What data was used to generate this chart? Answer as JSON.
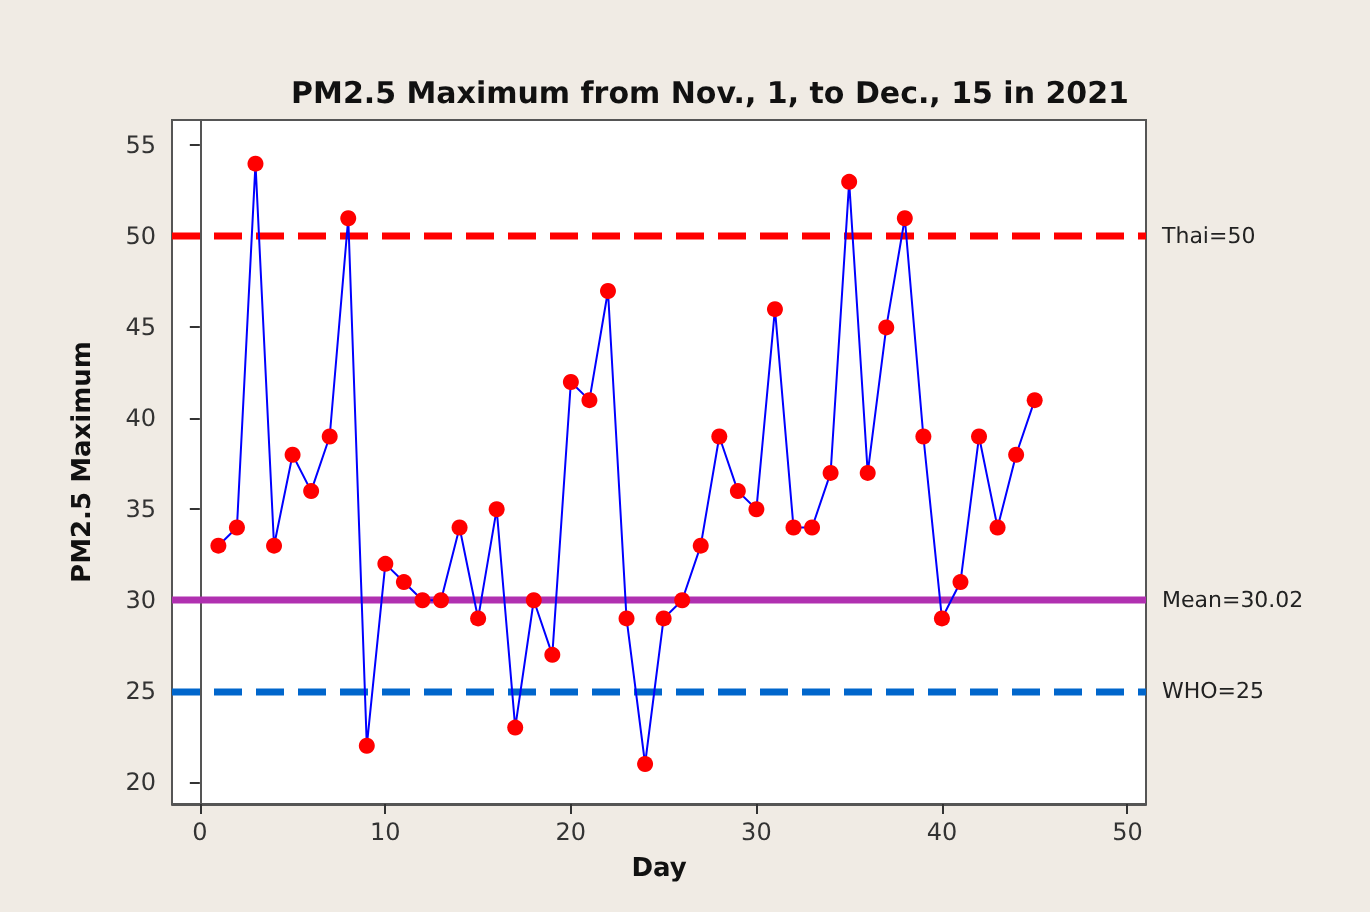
{
  "chart_data": {
    "type": "line",
    "title": "PM2.5 Maximum from Nov., 1, to Dec., 15 in 2021",
    "xlabel": "Day",
    "ylabel": "PM2.5 Maximum",
    "x": [
      1,
      2,
      3,
      4,
      5,
      6,
      7,
      8,
      9,
      10,
      11,
      12,
      13,
      14,
      15,
      16,
      17,
      18,
      19,
      20,
      21,
      22,
      23,
      24,
      25,
      26,
      27,
      28,
      29,
      30,
      31,
      32,
      33,
      34,
      35,
      36,
      37,
      38,
      39,
      40,
      41,
      42,
      43,
      44,
      45
    ],
    "series": [
      {
        "color": "#0000ff",
        "values": [
          33,
          34,
          54,
          33,
          38,
          36,
          39,
          51,
          22,
          32,
          31,
          30,
          30,
          34,
          29,
          35,
          23,
          30,
          27,
          42,
          41,
          47,
          29,
          21,
          29,
          30,
          33,
          39,
          36,
          35,
          46,
          34,
          34,
          37,
          53,
          37,
          45,
          51,
          39,
          29,
          31,
          39,
          34,
          38,
          41
        ]
      }
    ],
    "marker": "circle",
    "line_style": "solid",
    "grid": false,
    "xlim": [
      -1.5,
      51
    ],
    "xticks": [
      0,
      10,
      20,
      30,
      40,
      50
    ],
    "ylim": [
      18.8,
      56.4
    ],
    "yticks": [
      20,
      25,
      30,
      35,
      40,
      45,
      50,
      55
    ],
    "ref_lines": [
      {
        "axis": "y",
        "value": 50,
        "label": "Thai=50",
        "color": "#ff0000",
        "line_style": "dashed"
      },
      {
        "axis": "y",
        "value": 30.02,
        "label": "Mean=30.02",
        "color": "#b030b0",
        "line_style": "solid"
      },
      {
        "axis": "y",
        "value": 25,
        "label": "WHO=25",
        "color": "#0066cc",
        "line_style": "dashed"
      }
    ]
  }
}
